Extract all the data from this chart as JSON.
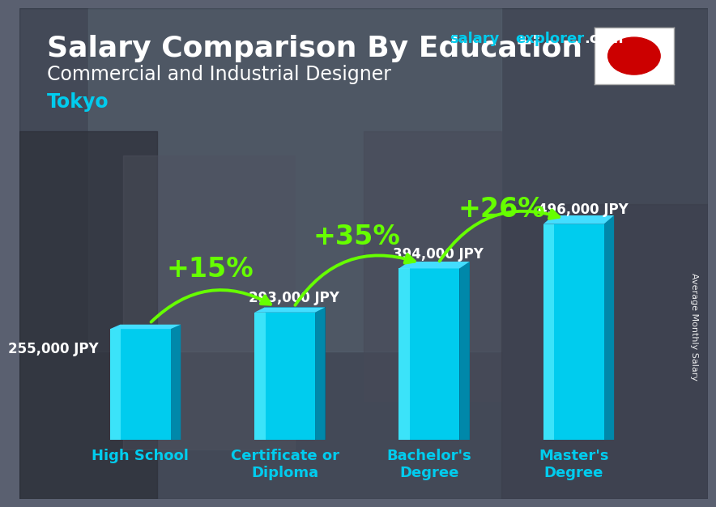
{
  "title_main": "Salary Comparison By Education",
  "title_sub": "Commercial and Industrial Designer",
  "title_city": "Tokyo",
  "ylabel": "Average Monthly Salary",
  "categories": [
    "High School",
    "Certificate or\nDiploma",
    "Bachelor's\nDegree",
    "Master's\nDegree"
  ],
  "values": [
    255000,
    293000,
    394000,
    496000
  ],
  "value_labels": [
    "255,000 JPY",
    "293,000 JPY",
    "394,000 JPY",
    "496,000 JPY"
  ],
  "pct_labels": [
    "+15%",
    "+35%",
    "+26%"
  ],
  "bar_front": "#00ccee",
  "bar_light": "#44ddff",
  "bar_dark": "#0088aa",
  "bar_side": "#005577",
  "bg_color": "#4a5568",
  "text_white": "#ffffff",
  "text_cyan": "#00ccee",
  "text_green": "#66ff00",
  "arrow_green": "#66ff00",
  "ylim_max": 620000,
  "title_fontsize": 26,
  "sub_fontsize": 17,
  "city_fontsize": 17,
  "val_fontsize": 12,
  "pct_fontsize": 24,
  "cat_fontsize": 13,
  "brand_fontsize": 13
}
